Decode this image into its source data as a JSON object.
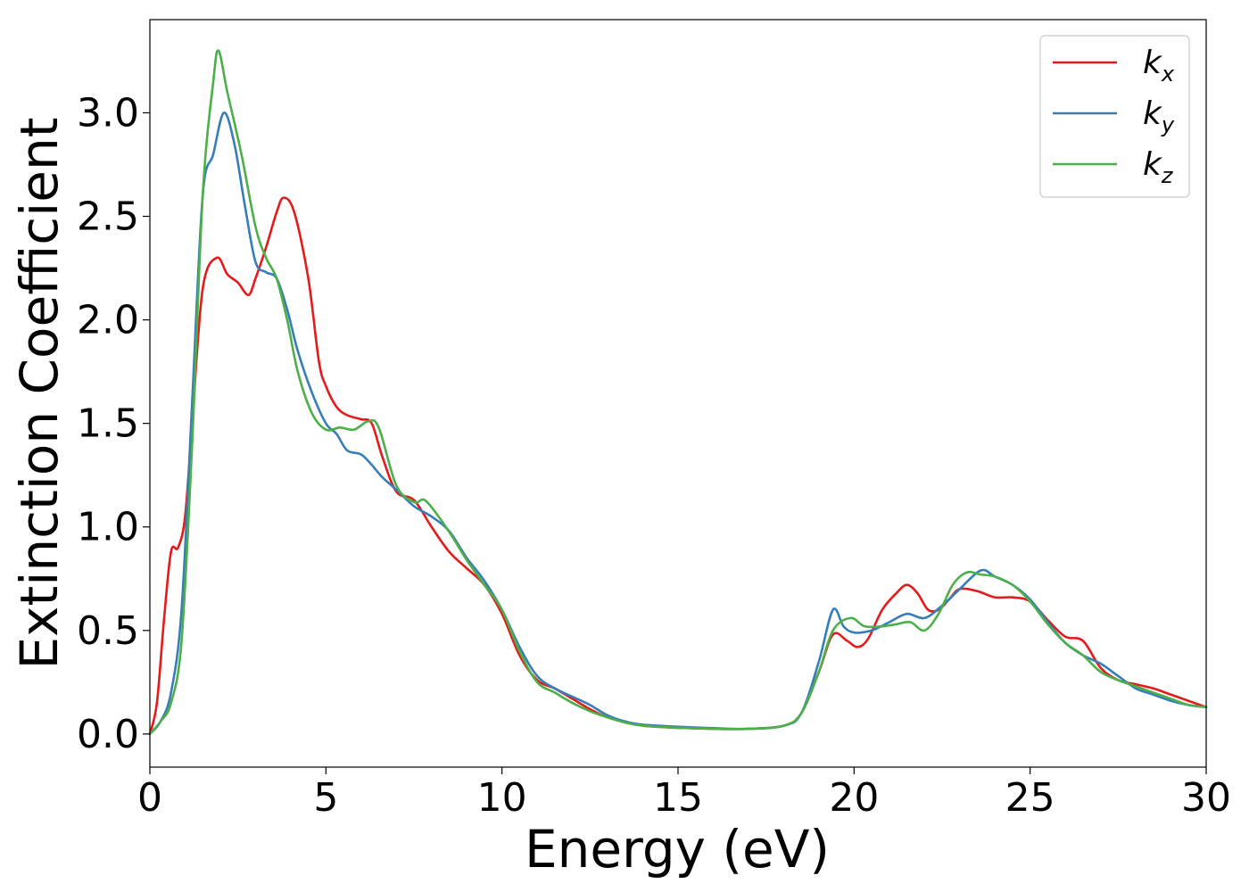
{
  "chart_data": {
    "type": "line",
    "xlabel": "Energy (eV)",
    "ylabel": "Extinction Coefficient",
    "xlim": [
      0,
      30
    ],
    "ylim": [
      -0.16,
      3.45
    ],
    "xticks": [
      0,
      5,
      10,
      15,
      20,
      25,
      30
    ],
    "xtick_labels": [
      "0",
      "5",
      "10",
      "15",
      "20",
      "25",
      "30"
    ],
    "yticks": [
      0.0,
      0.5,
      1.0,
      1.5,
      2.0,
      2.5,
      3.0
    ],
    "ytick_labels": [
      "0.0",
      "0.5",
      "1.0",
      "1.5",
      "2.0",
      "2.5",
      "3.0"
    ],
    "grid": false,
    "legend_position": "top-right",
    "series": [
      {
        "name": "k_x",
        "label_main": "k",
        "label_sub": "x",
        "color": "#e41a1c",
        "points": [
          [
            0,
            0.0
          ],
          [
            0.2,
            0.15
          ],
          [
            0.4,
            0.55
          ],
          [
            0.6,
            0.88
          ],
          [
            0.8,
            0.9
          ],
          [
            1.0,
            1.05
          ],
          [
            1.2,
            1.5
          ],
          [
            1.5,
            2.15
          ],
          [
            1.9,
            2.3
          ],
          [
            2.2,
            2.22
          ],
          [
            2.5,
            2.18
          ],
          [
            2.8,
            2.12
          ],
          [
            3.0,
            2.2
          ],
          [
            3.3,
            2.35
          ],
          [
            3.6,
            2.52
          ],
          [
            3.8,
            2.59
          ],
          [
            4.1,
            2.52
          ],
          [
            4.5,
            2.2
          ],
          [
            4.8,
            1.8
          ],
          [
            5.0,
            1.68
          ],
          [
            5.3,
            1.58
          ],
          [
            5.6,
            1.54
          ],
          [
            6.0,
            1.52
          ],
          [
            6.3,
            1.5
          ],
          [
            6.6,
            1.34
          ],
          [
            7.0,
            1.17
          ],
          [
            7.5,
            1.13
          ],
          [
            8.0,
            1.0
          ],
          [
            8.5,
            0.88
          ],
          [
            9.0,
            0.8
          ],
          [
            9.5,
            0.72
          ],
          [
            10.0,
            0.58
          ],
          [
            10.5,
            0.38
          ],
          [
            11.0,
            0.26
          ],
          [
            11.5,
            0.22
          ],
          [
            12.0,
            0.17
          ],
          [
            12.5,
            0.12
          ],
          [
            13.0,
            0.08
          ],
          [
            13.5,
            0.06
          ],
          [
            14.0,
            0.04
          ],
          [
            15.0,
            0.03
          ],
          [
            16.0,
            0.025
          ],
          [
            17.0,
            0.025
          ],
          [
            18.0,
            0.04
          ],
          [
            18.5,
            0.1
          ],
          [
            19.0,
            0.3
          ],
          [
            19.4,
            0.48
          ],
          [
            19.8,
            0.45
          ],
          [
            20.1,
            0.42
          ],
          [
            20.4,
            0.46
          ],
          [
            20.8,
            0.6
          ],
          [
            21.2,
            0.68
          ],
          [
            21.5,
            0.72
          ],
          [
            21.8,
            0.68
          ],
          [
            22.1,
            0.6
          ],
          [
            22.4,
            0.6
          ],
          [
            22.7,
            0.65
          ],
          [
            23.0,
            0.7
          ],
          [
            23.5,
            0.69
          ],
          [
            24.0,
            0.66
          ],
          [
            24.5,
            0.66
          ],
          [
            25.0,
            0.64
          ],
          [
            25.5,
            0.55
          ],
          [
            26.0,
            0.47
          ],
          [
            26.5,
            0.45
          ],
          [
            27.0,
            0.32
          ],
          [
            27.5,
            0.26
          ],
          [
            28.0,
            0.24
          ],
          [
            28.5,
            0.22
          ],
          [
            29.0,
            0.19
          ],
          [
            29.5,
            0.16
          ],
          [
            30.0,
            0.13
          ]
        ]
      },
      {
        "name": "k_y",
        "label_main": "k",
        "label_sub": "y",
        "color": "#377eb8",
        "points": [
          [
            0,
            0.0
          ],
          [
            0.3,
            0.06
          ],
          [
            0.6,
            0.2
          ],
          [
            0.9,
            0.6
          ],
          [
            1.2,
            1.6
          ],
          [
            1.5,
            2.6
          ],
          [
            1.8,
            2.8
          ],
          [
            2.1,
            3.0
          ],
          [
            2.4,
            2.85
          ],
          [
            2.7,
            2.55
          ],
          [
            3.0,
            2.28
          ],
          [
            3.3,
            2.23
          ],
          [
            3.6,
            2.2
          ],
          [
            3.9,
            2.05
          ],
          [
            4.2,
            1.85
          ],
          [
            4.6,
            1.65
          ],
          [
            5.0,
            1.5
          ],
          [
            5.3,
            1.45
          ],
          [
            5.6,
            1.37
          ],
          [
            6.0,
            1.35
          ],
          [
            6.3,
            1.3
          ],
          [
            6.6,
            1.24
          ],
          [
            7.0,
            1.18
          ],
          [
            7.5,
            1.1
          ],
          [
            8.0,
            1.05
          ],
          [
            8.5,
            0.98
          ],
          [
            9.0,
            0.85
          ],
          [
            9.5,
            0.74
          ],
          [
            10.0,
            0.6
          ],
          [
            10.5,
            0.42
          ],
          [
            11.0,
            0.28
          ],
          [
            11.5,
            0.22
          ],
          [
            12.0,
            0.18
          ],
          [
            12.5,
            0.14
          ],
          [
            13.0,
            0.09
          ],
          [
            13.5,
            0.06
          ],
          [
            14.0,
            0.045
          ],
          [
            15.0,
            0.035
          ],
          [
            16.0,
            0.028
          ],
          [
            17.0,
            0.025
          ],
          [
            18.0,
            0.04
          ],
          [
            18.5,
            0.1
          ],
          [
            19.0,
            0.35
          ],
          [
            19.4,
            0.6
          ],
          [
            19.7,
            0.52
          ],
          [
            20.0,
            0.49
          ],
          [
            20.5,
            0.5
          ],
          [
            21.0,
            0.54
          ],
          [
            21.5,
            0.58
          ],
          [
            22.0,
            0.56
          ],
          [
            22.5,
            0.62
          ],
          [
            23.0,
            0.7
          ],
          [
            23.6,
            0.79
          ],
          [
            24.0,
            0.76
          ],
          [
            24.5,
            0.72
          ],
          [
            25.0,
            0.65
          ],
          [
            25.5,
            0.54
          ],
          [
            26.0,
            0.44
          ],
          [
            26.5,
            0.38
          ],
          [
            27.0,
            0.34
          ],
          [
            27.5,
            0.28
          ],
          [
            28.0,
            0.22
          ],
          [
            28.5,
            0.19
          ],
          [
            29.0,
            0.16
          ],
          [
            29.5,
            0.14
          ],
          [
            30.0,
            0.13
          ]
        ]
      },
      {
        "name": "k_z",
        "label_main": "k",
        "label_sub": "z",
        "color": "#4daf4a",
        "points": [
          [
            0,
            0.0
          ],
          [
            0.3,
            0.06
          ],
          [
            0.6,
            0.15
          ],
          [
            0.9,
            0.45
          ],
          [
            1.2,
            1.4
          ],
          [
            1.5,
            2.6
          ],
          [
            1.8,
            3.15
          ],
          [
            1.95,
            3.3
          ],
          [
            2.2,
            3.1
          ],
          [
            2.6,
            2.8
          ],
          [
            3.0,
            2.45
          ],
          [
            3.3,
            2.3
          ],
          [
            3.6,
            2.2
          ],
          [
            3.9,
            2.0
          ],
          [
            4.2,
            1.75
          ],
          [
            4.6,
            1.55
          ],
          [
            5.0,
            1.47
          ],
          [
            5.4,
            1.48
          ],
          [
            5.8,
            1.47
          ],
          [
            6.2,
            1.51
          ],
          [
            6.5,
            1.48
          ],
          [
            7.0,
            1.2
          ],
          [
            7.5,
            1.12
          ],
          [
            7.8,
            1.13
          ],
          [
            8.2,
            1.05
          ],
          [
            8.6,
            0.95
          ],
          [
            9.0,
            0.84
          ],
          [
            9.5,
            0.72
          ],
          [
            10.0,
            0.6
          ],
          [
            10.5,
            0.4
          ],
          [
            11.0,
            0.25
          ],
          [
            11.5,
            0.2
          ],
          [
            12.0,
            0.15
          ],
          [
            12.5,
            0.11
          ],
          [
            13.0,
            0.08
          ],
          [
            13.5,
            0.055
          ],
          [
            14.0,
            0.04
          ],
          [
            15.0,
            0.03
          ],
          [
            16.0,
            0.025
          ],
          [
            17.0,
            0.025
          ],
          [
            18.0,
            0.04
          ],
          [
            18.5,
            0.1
          ],
          [
            19.0,
            0.3
          ],
          [
            19.4,
            0.5
          ],
          [
            19.9,
            0.56
          ],
          [
            20.3,
            0.52
          ],
          [
            20.8,
            0.52
          ],
          [
            21.2,
            0.53
          ],
          [
            21.6,
            0.54
          ],
          [
            22.0,
            0.5
          ],
          [
            22.4,
            0.58
          ],
          [
            22.8,
            0.72
          ],
          [
            23.2,
            0.78
          ],
          [
            23.6,
            0.77
          ],
          [
            24.0,
            0.76
          ],
          [
            24.5,
            0.72
          ],
          [
            25.0,
            0.64
          ],
          [
            25.5,
            0.53
          ],
          [
            26.0,
            0.44
          ],
          [
            26.5,
            0.38
          ],
          [
            27.0,
            0.3
          ],
          [
            27.5,
            0.26
          ],
          [
            28.0,
            0.23
          ],
          [
            28.5,
            0.2
          ],
          [
            29.0,
            0.17
          ],
          [
            29.5,
            0.14
          ],
          [
            30.0,
            0.13
          ]
        ]
      }
    ]
  }
}
